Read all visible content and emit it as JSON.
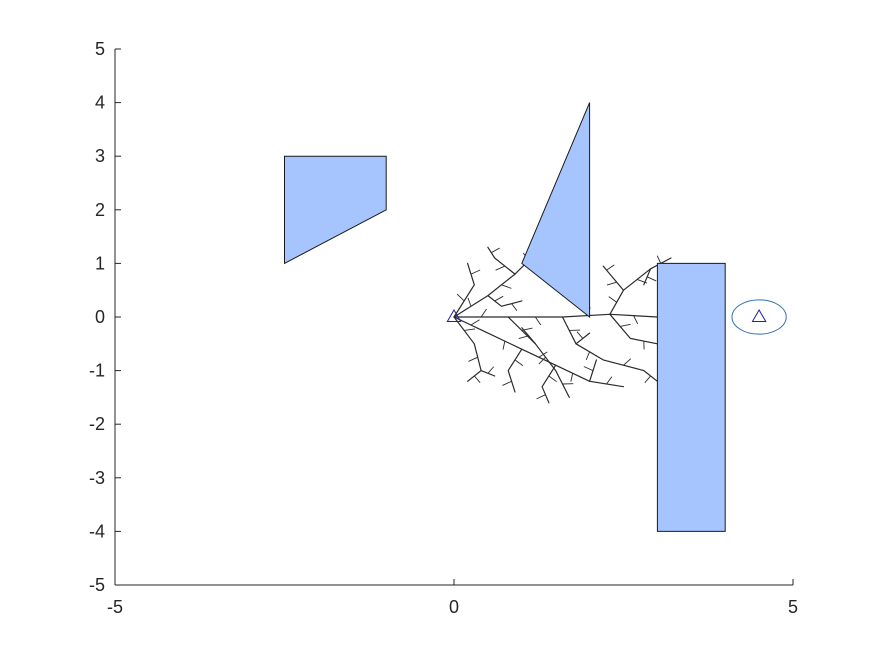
{
  "chart_data": {
    "type": "scatter",
    "title": "",
    "xlabel": "",
    "ylabel": "",
    "xlim": [
      -5,
      5
    ],
    "ylim": [
      -5,
      5
    ],
    "grid": false,
    "x_ticks": [
      -5,
      0,
      5
    ],
    "x_tick_labels": [
      "-5",
      "0",
      "5"
    ],
    "y_ticks": [
      5,
      4,
      3,
      2,
      1,
      0,
      -1,
      -2,
      -3,
      -4,
      -5
    ],
    "y_tick_labels": [
      "5",
      "4",
      "3",
      "2",
      "1",
      "0",
      "-1",
      "-2",
      "-3",
      "-4",
      "-5"
    ],
    "colors": {
      "obstacle_fill": "#a6c5ff",
      "obstacle_edge": "#1a1a1a",
      "tree": "#2b2b2b",
      "marker": "#1f1fa8",
      "goal_circle": "#2f6fb5",
      "axis": "#262626"
    },
    "obstacles": [
      {
        "name": "quadrilateral",
        "vertices": [
          [
            -2.5,
            1
          ],
          [
            -2.5,
            3
          ],
          [
            -1,
            3
          ],
          [
            -1,
            2
          ]
        ]
      },
      {
        "name": "triangle",
        "vertices": [
          [
            1,
            1
          ],
          [
            2,
            4
          ],
          [
            2,
            0
          ]
        ]
      },
      {
        "name": "rectangle",
        "vertices": [
          [
            3,
            -4
          ],
          [
            3,
            1
          ],
          [
            4,
            1
          ],
          [
            4,
            -4
          ]
        ]
      }
    ],
    "start": {
      "x": 0,
      "y": 0,
      "marker": "triangle"
    },
    "goal": {
      "x": 4.5,
      "y": 0,
      "marker": "triangle",
      "radius": 0.4
    },
    "tree_branches": [
      [
        [
          0,
          0
        ],
        [
          0.8,
          0.0
        ],
        [
          1.6,
          0.0
        ],
        [
          2.3,
          0.05
        ],
        [
          3.0,
          0.0
        ]
      ],
      [
        [
          0,
          0
        ],
        [
          0.5,
          0.4
        ],
        [
          0.9,
          0.8
        ],
        [
          1.3,
          1.3
        ]
      ],
      [
        [
          0,
          0
        ],
        [
          0.3,
          0.6
        ],
        [
          0.2,
          1.0
        ]
      ],
      [
        [
          0,
          0
        ],
        [
          0.5,
          -0.3
        ],
        [
          1.0,
          -0.6
        ],
        [
          1.5,
          -0.9
        ],
        [
          2.0,
          -1.2
        ],
        [
          2.5,
          -1.3
        ]
      ],
      [
        [
          0,
          0
        ],
        [
          0.3,
          -0.5
        ],
        [
          0.4,
          -1.0
        ],
        [
          0.6,
          -1.1
        ]
      ],
      [
        [
          0.8,
          0.0
        ],
        [
          1.2,
          -0.5
        ],
        [
          1.5,
          -1.0
        ],
        [
          1.7,
          -1.5
        ]
      ],
      [
        [
          1.6,
          0.0
        ],
        [
          1.8,
          -0.5
        ],
        [
          2.2,
          -0.8
        ],
        [
          2.8,
          -1.0
        ],
        [
          3.0,
          -1.2
        ]
      ],
      [
        [
          2.3,
          0.05
        ],
        [
          2.5,
          0.5
        ],
        [
          2.9,
          0.9
        ],
        [
          3.2,
          1.1
        ]
      ],
      [
        [
          2.3,
          0.05
        ],
        [
          2.6,
          -0.4
        ],
        [
          3.0,
          -0.5
        ]
      ],
      [
        [
          0.5,
          0.4
        ],
        [
          0.7,
          0.2
        ],
        [
          1.0,
          0.3
        ]
      ],
      [
        [
          0.9,
          0.8
        ],
        [
          0.6,
          1.1
        ],
        [
          0.5,
          1.3
        ]
      ],
      [
        [
          1.0,
          -0.6
        ],
        [
          0.8,
          -1.0
        ],
        [
          0.9,
          -1.4
        ]
      ],
      [
        [
          1.5,
          -0.9
        ],
        [
          1.3,
          -1.3
        ],
        [
          1.4,
          -1.6
        ]
      ],
      [
        [
          2.0,
          -1.2
        ],
        [
          2.1,
          -0.8
        ]
      ],
      [
        [
          0.4,
          -1.0
        ],
        [
          0.2,
          -1.2
        ]
      ],
      [
        [
          1.2,
          -0.5
        ],
        [
          1.0,
          -0.2
        ]
      ],
      [
        [
          1.8,
          -0.5
        ],
        [
          2.0,
          -0.3
        ]
      ],
      [
        [
          2.5,
          0.5
        ],
        [
          2.3,
          0.8
        ],
        [
          2.2,
          0.95
        ]
      ],
      [
        [
          2.9,
          0.9
        ],
        [
          2.8,
          0.6
        ]
      ]
    ]
  }
}
